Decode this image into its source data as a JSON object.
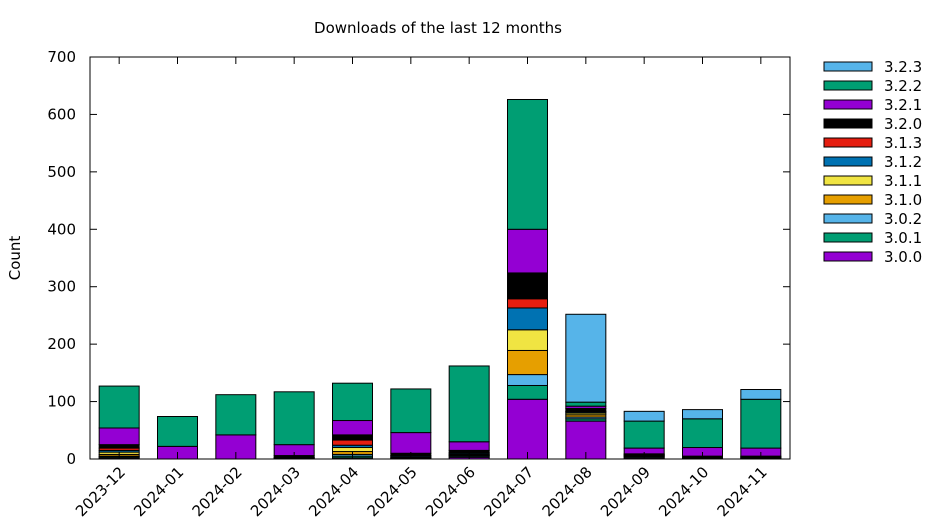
{
  "chart_data": {
    "type": "bar",
    "stacked": true,
    "title": "Downloads of the last 12 months",
    "ylabel": "Count",
    "xlabel": "",
    "ylim": [
      0,
      700
    ],
    "yticks": [
      0,
      100,
      200,
      300,
      400,
      500,
      600,
      700
    ],
    "grid": false,
    "legend_position": "right",
    "categories": [
      "2023-12",
      "2024-01",
      "2024-02",
      "2024-03",
      "2024-04",
      "2024-05",
      "2024-06",
      "2024-07",
      "2024-08",
      "2024-09",
      "2024-10",
      "2024-11"
    ],
    "series": [
      {
        "name": "3.0.0",
        "color": "#9400d3",
        "values": [
          2,
          0,
          0,
          0,
          2,
          0,
          3,
          104,
          66,
          2,
          0,
          1
        ]
      },
      {
        "name": "3.0.1",
        "color": "#009e73",
        "values": [
          2,
          0,
          0,
          1,
          3,
          1,
          2,
          24,
          4,
          2,
          0,
          0
        ]
      },
      {
        "name": "3.0.2",
        "color": "#56b4e9",
        "values": [
          1,
          0,
          0,
          0,
          3,
          0,
          1,
          19,
          3,
          0,
          0,
          0
        ]
      },
      {
        "name": "3.1.0",
        "color": "#e69f00",
        "values": [
          3,
          0,
          0,
          0,
          5,
          1,
          1,
          42,
          4,
          1,
          1,
          1
        ]
      },
      {
        "name": "3.1.1",
        "color": "#f0e442",
        "values": [
          4,
          0,
          0,
          0,
          7,
          1,
          1,
          36,
          3,
          1,
          1,
          1
        ]
      },
      {
        "name": "3.1.2",
        "color": "#0072b2",
        "values": [
          3,
          0,
          0,
          1,
          4,
          2,
          2,
          38,
          2,
          1,
          1,
          1
        ]
      },
      {
        "name": "3.1.3",
        "color": "#e51e10",
        "values": [
          4,
          0,
          0,
          1,
          9,
          1,
          1,
          16,
          1,
          1,
          0,
          0
        ]
      },
      {
        "name": "3.2.0",
        "color": "#000000",
        "values": [
          6,
          0,
          0,
          3,
          9,
          4,
          4,
          45,
          5,
          1,
          2,
          1
        ]
      },
      {
        "name": "3.2.1",
        "color": "#9400d3",
        "values": [
          29,
          22,
          42,
          19,
          25,
          36,
          15,
          76,
          4,
          10,
          15,
          14
        ]
      },
      {
        "name": "3.2.2",
        "color": "#009e73",
        "values": [
          73,
          52,
          70,
          92,
          65,
          76,
          132,
          226,
          7,
          47,
          50,
          85
        ]
      },
      {
        "name": "3.2.3",
        "color": "#56b4e9",
        "values": [
          0,
          0,
          0,
          0,
          0,
          0,
          0,
          0,
          153,
          17,
          16,
          17
        ]
      }
    ]
  }
}
